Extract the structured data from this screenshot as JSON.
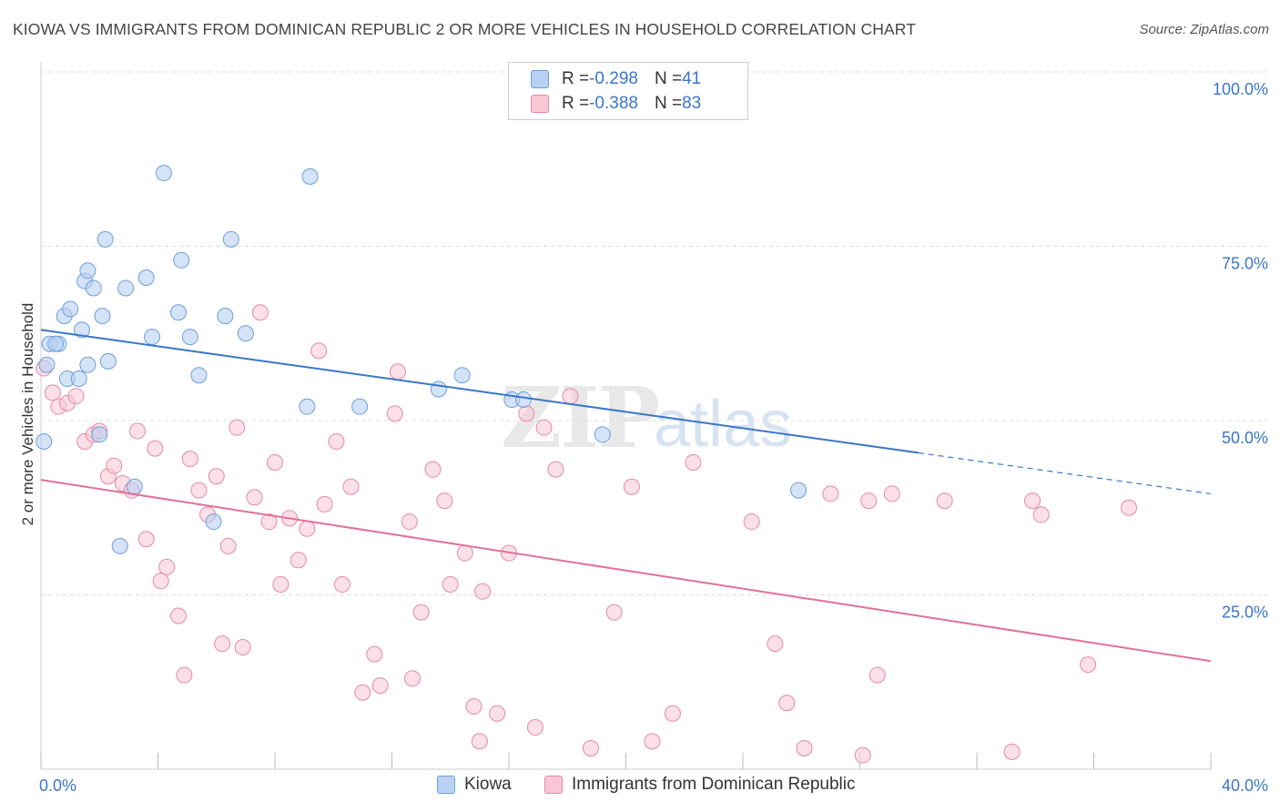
{
  "title": "KIOWA VS IMMIGRANTS FROM DOMINICAN REPUBLIC 2 OR MORE VEHICLES IN HOUSEHOLD CORRELATION CHART",
  "source": "Source: ZipAtlas.com",
  "watermark": {
    "zip": "ZIP",
    "atlas": "atlas"
  },
  "legend_top": [
    {
      "r_label": "R = ",
      "r_value": "-0.298",
      "n_label": "N = ",
      "n_value": "41"
    },
    {
      "r_label": "R = ",
      "r_value": "-0.388",
      "n_label": "N = ",
      "n_value": "83"
    }
  ],
  "legend_bottom": [
    "Kiowa",
    "Immigrants from Dominican Republic"
  ],
  "colors": {
    "kiowa_fill": "#b8d1f3",
    "kiowa_stroke": "#6d9fd8",
    "kiowa_line": "#3a76c8",
    "dom_fill": "#f9c6d4",
    "dom_stroke": "#e48aa6",
    "dom_line": "#e0709a",
    "tick_text": "#3a76c8",
    "grid": "#dddddd"
  },
  "chart_data": {
    "type": "scatter",
    "title": "KIOWA VS IMMIGRANTS FROM DOMINICAN REPUBLIC 2 OR MORE VEHICLES IN HOUSEHOLD CORRELATION CHART",
    "xlabel": "",
    "ylabel": "2 or more Vehicles in Household",
    "xlim": [
      0,
      40
    ],
    "ylim": [
      0,
      100
    ],
    "x_tick_labels": [
      "0.0%",
      "40.0%"
    ],
    "y_tick_labels": [
      "100.0%",
      "75.0%",
      "50.0%",
      "25.0%"
    ],
    "y_ticks": [
      100,
      75,
      50,
      25
    ],
    "grid": true,
    "series": [
      {
        "name": "Kiowa",
        "points": [
          [
            0.1,
            47.0
          ],
          [
            0.2,
            58.0
          ],
          [
            0.3,
            61.0
          ],
          [
            0.6,
            61.0
          ],
          [
            0.8,
            65.0
          ],
          [
            0.9,
            56.0
          ],
          [
            1.0,
            66.0
          ],
          [
            1.3,
            56.0
          ],
          [
            1.4,
            63.0
          ],
          [
            1.5,
            70.0
          ],
          [
            1.6,
            71.5
          ],
          [
            1.6,
            58.0
          ],
          [
            1.8,
            69.0
          ],
          [
            2.0,
            48.0
          ],
          [
            2.1,
            65.0
          ],
          [
            2.2,
            76.0
          ],
          [
            2.3,
            58.5
          ],
          [
            2.7,
            32.0
          ],
          [
            2.9,
            69.0
          ],
          [
            3.2,
            40.5
          ],
          [
            3.6,
            70.5
          ],
          [
            3.8,
            62.0
          ],
          [
            4.2,
            85.5
          ],
          [
            4.7,
            65.5
          ],
          [
            4.8,
            73.0
          ],
          [
            5.1,
            62.0
          ],
          [
            5.4,
            56.5
          ],
          [
            5.9,
            35.5
          ],
          [
            6.3,
            65.0
          ],
          [
            6.5,
            76.0
          ],
          [
            7.0,
            62.5
          ],
          [
            9.1,
            52.0
          ],
          [
            9.2,
            85.0
          ],
          [
            10.9,
            52.0
          ],
          [
            13.6,
            54.5
          ],
          [
            14.4,
            56.5
          ],
          [
            16.1,
            53.0
          ],
          [
            16.5,
            53.0
          ],
          [
            19.2,
            48.0
          ],
          [
            25.9,
            40.0
          ],
          [
            0.5,
            61.0
          ]
        ]
      },
      {
        "name": "Immigrants from Dominican Republic",
        "points": [
          [
            0.1,
            57.5
          ],
          [
            0.4,
            54.0
          ],
          [
            0.6,
            52.0
          ],
          [
            0.9,
            52.5
          ],
          [
            1.2,
            53.5
          ],
          [
            1.5,
            47.0
          ],
          [
            1.8,
            48.0
          ],
          [
            2.0,
            48.5
          ],
          [
            2.3,
            42.0
          ],
          [
            2.5,
            43.5
          ],
          [
            2.8,
            41.0
          ],
          [
            3.1,
            40.0
          ],
          [
            3.3,
            48.5
          ],
          [
            3.6,
            33.0
          ],
          [
            3.9,
            46.0
          ],
          [
            4.1,
            27.0
          ],
          [
            4.3,
            29.0
          ],
          [
            4.7,
            22.0
          ],
          [
            4.9,
            13.5
          ],
          [
            5.1,
            44.5
          ],
          [
            5.4,
            40.0
          ],
          [
            5.7,
            36.5
          ],
          [
            6.0,
            42.0
          ],
          [
            6.2,
            18.0
          ],
          [
            6.4,
            32.0
          ],
          [
            6.7,
            49.0
          ],
          [
            6.9,
            17.5
          ],
          [
            7.3,
            39.0
          ],
          [
            7.5,
            65.5
          ],
          [
            7.8,
            35.5
          ],
          [
            8.0,
            44.0
          ],
          [
            8.2,
            26.5
          ],
          [
            8.5,
            36.0
          ],
          [
            8.8,
            30.0
          ],
          [
            9.1,
            34.5
          ],
          [
            9.5,
            60.0
          ],
          [
            9.7,
            38.0
          ],
          [
            10.1,
            47.0
          ],
          [
            10.3,
            26.5
          ],
          [
            10.6,
            40.5
          ],
          [
            11.0,
            11.0
          ],
          [
            11.4,
            16.5
          ],
          [
            11.6,
            12.0
          ],
          [
            12.1,
            51.0
          ],
          [
            12.2,
            57.0
          ],
          [
            12.6,
            35.5
          ],
          [
            12.7,
            13.0
          ],
          [
            13.0,
            22.5
          ],
          [
            13.4,
            43.0
          ],
          [
            13.8,
            38.5
          ],
          [
            14.0,
            26.5
          ],
          [
            14.5,
            31.0
          ],
          [
            14.8,
            9.0
          ],
          [
            15.0,
            4.0
          ],
          [
            15.1,
            25.5
          ],
          [
            15.6,
            8.0
          ],
          [
            16.0,
            31.0
          ],
          [
            16.6,
            51.0
          ],
          [
            16.9,
            6.0
          ],
          [
            17.2,
            49.0
          ],
          [
            17.6,
            43.0
          ],
          [
            18.1,
            53.5
          ],
          [
            18.8,
            3.0
          ],
          [
            19.6,
            22.5
          ],
          [
            20.2,
            40.5
          ],
          [
            20.9,
            4.0
          ],
          [
            21.6,
            8.0
          ],
          [
            22.3,
            44.0
          ],
          [
            24.3,
            35.5
          ],
          [
            25.1,
            18.0
          ],
          [
            25.5,
            9.5
          ],
          [
            26.1,
            3.0
          ],
          [
            27.0,
            39.5
          ],
          [
            28.1,
            2.0
          ],
          [
            28.3,
            38.5
          ],
          [
            28.6,
            13.5
          ],
          [
            29.1,
            39.5
          ],
          [
            30.9,
            38.5
          ],
          [
            33.2,
            2.5
          ],
          [
            33.9,
            38.5
          ],
          [
            34.2,
            36.5
          ],
          [
            35.8,
            15.0
          ],
          [
            37.2,
            37.5
          ]
        ]
      }
    ],
    "trend_lines": [
      {
        "name": "Kiowa",
        "x_start": 0,
        "y_start": 63.0,
        "x_solid_end": 30.0,
        "x_end": 40,
        "y_end": 39.5
      },
      {
        "name": "Immigrants from Dominican Republic",
        "x_start": 0,
        "y_start": 41.5,
        "x_end": 40,
        "y_end": 15.5
      }
    ]
  }
}
